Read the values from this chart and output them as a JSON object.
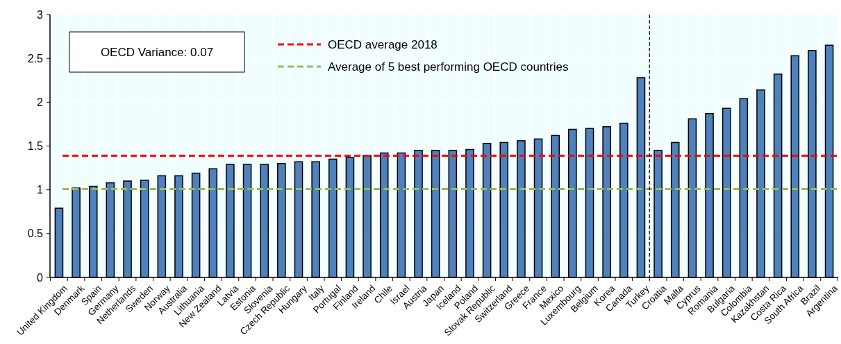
{
  "chart_data": {
    "type": "bar",
    "categories": [
      "United Kingdom",
      "Denmark",
      "Spain",
      "Germany",
      "Netherlands",
      "Sweden",
      "Norway",
      "Australia",
      "Lithuania",
      "New Zealand",
      "Latvia",
      "Estonia",
      "Slovenia",
      "Czech Republic",
      "Hungary",
      "Italy",
      "Portugal",
      "Finland",
      "Ireland",
      "Chile",
      "Israel",
      "Austria",
      "Japan",
      "Iceland",
      "Poland",
      "Slovak Republic",
      "Switzerland",
      "Greece",
      "France",
      "Mexico",
      "Luxembourg",
      "Belgium",
      "Korea",
      "Canada",
      "Turkey",
      "Croatia",
      "Malta",
      "Cyprus",
      "Romania",
      "Bulgaria",
      "Colombia",
      "Kazakhstan",
      "Costa Rica",
      "South Africa",
      "Brazil",
      "Argentina"
    ],
    "values": [
      0.79,
      1.02,
      1.04,
      1.08,
      1.1,
      1.11,
      1.16,
      1.16,
      1.19,
      1.24,
      1.29,
      1.29,
      1.29,
      1.3,
      1.32,
      1.32,
      1.35,
      1.37,
      1.39,
      1.42,
      1.42,
      1.45,
      1.45,
      1.45,
      1.46,
      1.53,
      1.54,
      1.56,
      1.58,
      1.62,
      1.69,
      1.7,
      1.72,
      1.76,
      2.28,
      1.45,
      1.54,
      1.81,
      1.87,
      1.93,
      2.04,
      2.14,
      2.32,
      2.53,
      2.59,
      2.65
    ],
    "color": "#4f81bd",
    "ylim": [
      0,
      3
    ],
    "yticks": [
      0,
      0.5,
      1,
      1.5,
      2,
      2.5,
      3
    ],
    "grid": true,
    "ref_lines": [
      {
        "axis": "y",
        "value": 1.39,
        "label": "OECD average 2018",
        "color": "#ff0000",
        "line_style": "dashed"
      },
      {
        "axis": "y",
        "value": 1.01,
        "label": "Average of 5 best performing OECD countries",
        "color": "#9bbb59",
        "line_style": "dashed"
      },
      {
        "axis": "x",
        "value": "Turkey",
        "label": null,
        "color": "#000000",
        "line_style": "dashed"
      }
    ],
    "annotations": [
      "OECD  Variance: 0.07"
    ],
    "legend": "top"
  }
}
